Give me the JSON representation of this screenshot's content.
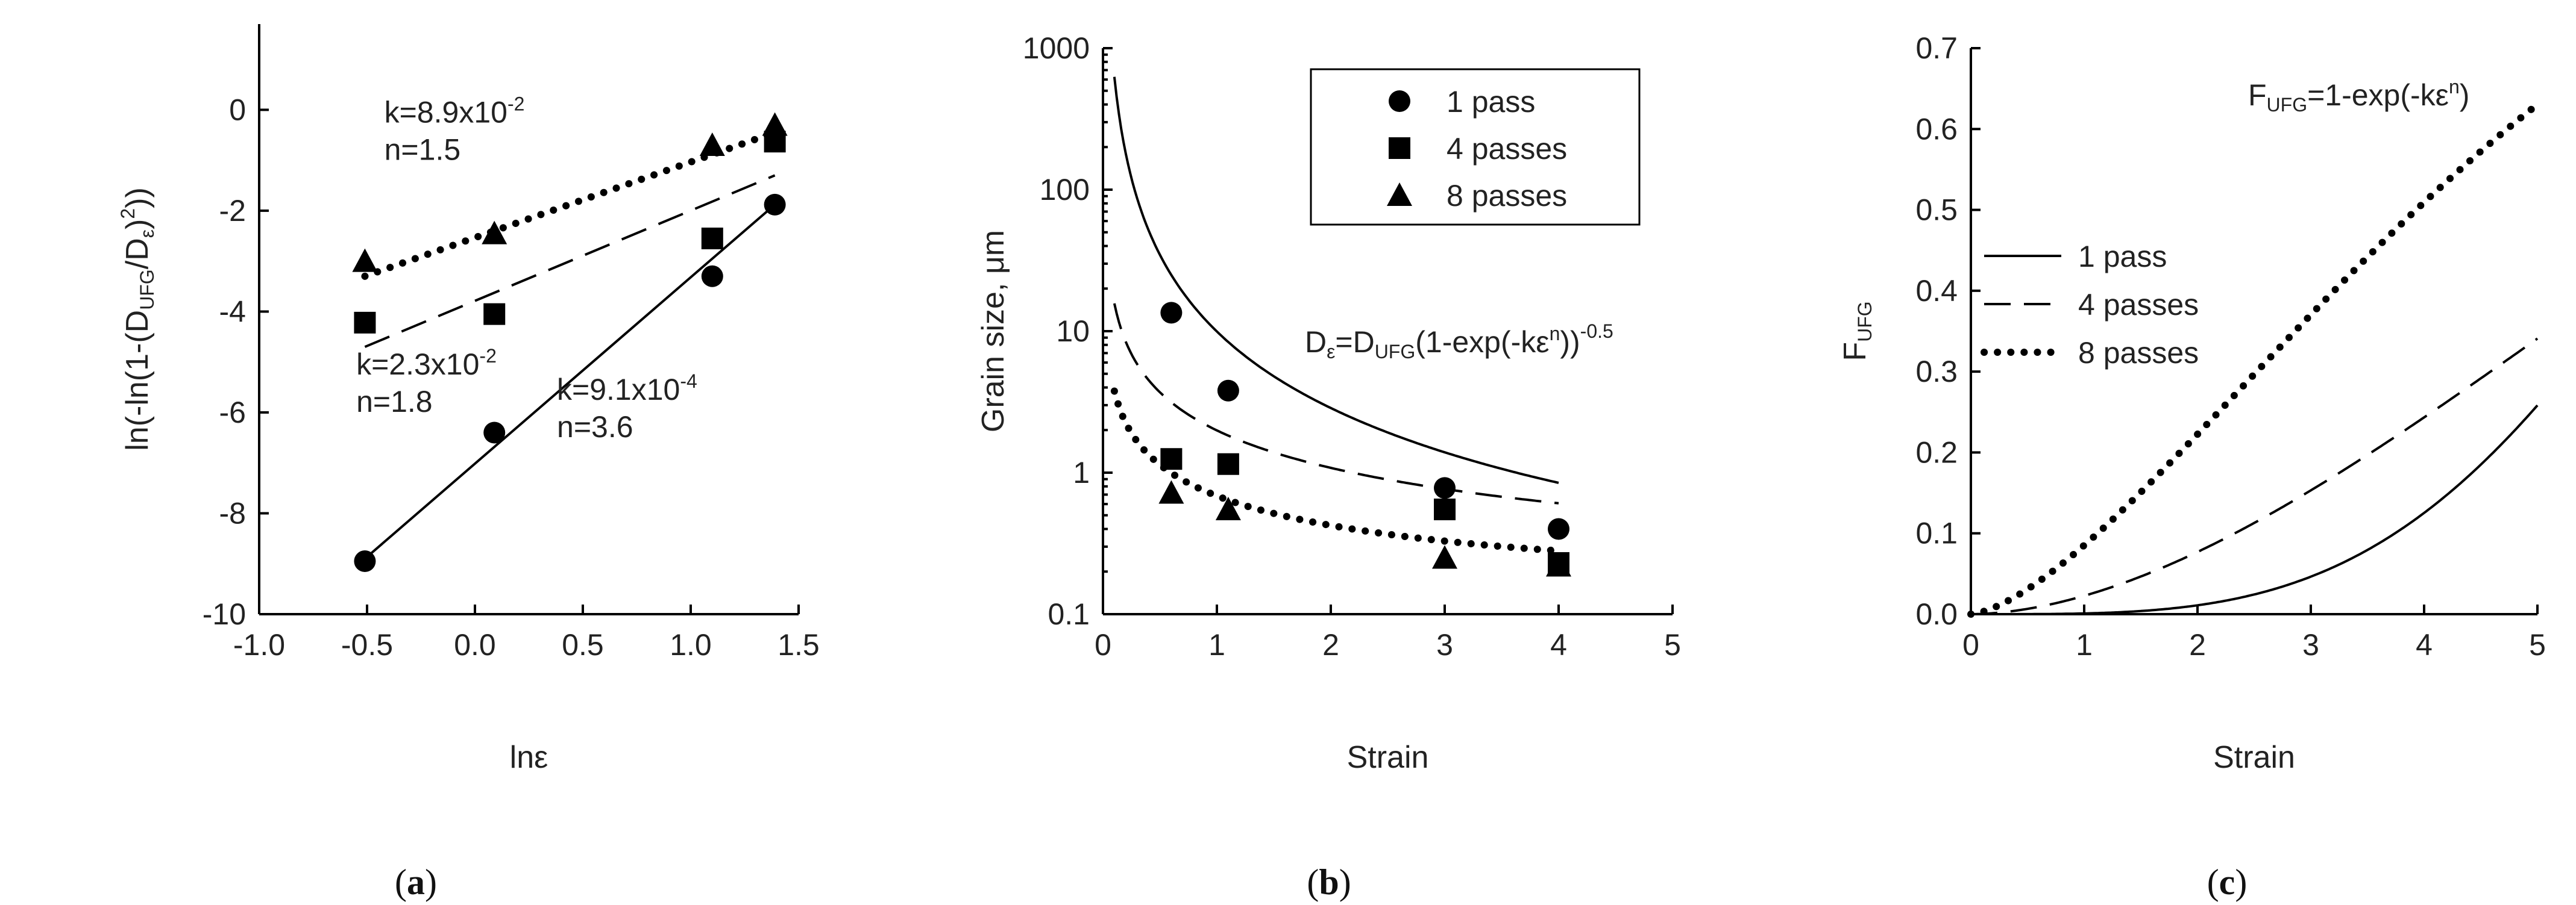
{
  "panels": [
    {
      "id": "a",
      "label_open": "(",
      "label_letter": "a",
      "label_close": ")"
    },
    {
      "id": "b",
      "label_open": "(",
      "label_letter": "b",
      "label_close": ")"
    },
    {
      "id": "c",
      "label_open": "(",
      "label_letter": "c",
      "label_close": ")"
    }
  ],
  "chart_data": [
    {
      "type": "scatter",
      "panel": "a",
      "xlabel": "lnε",
      "ylabel_parts": [
        "ln(-ln(1-(D",
        "UFG",
        "/D",
        "ε",
        ")",
        "2",
        "))"
      ],
      "xlim": [
        -1.0,
        1.5
      ],
      "ylim": [
        -10,
        1.7
      ],
      "xticks": [
        -1.0,
        -0.5,
        0.0,
        0.5,
        1.0,
        1.5
      ],
      "xtick_labels": [
        "-1.0",
        "-0.5",
        "0.0",
        "0.5",
        "1.0",
        "1.5"
      ],
      "yticks": [
        -10,
        -8,
        -6,
        -4,
        -2,
        0
      ],
      "ytick_labels": [
        "-10",
        "-8",
        "-6",
        "-4",
        "-2",
        "0"
      ],
      "series": [
        {
          "marker": "circle",
          "fit": "solid",
          "x": [
            -0.51,
            0.09,
            1.1,
            1.39
          ],
          "y": [
            -8.95,
            -6.4,
            -3.3,
            -1.88
          ],
          "fit_line": [
            [
              -0.51,
              -8.9
            ],
            [
              1.39,
              -1.88
            ]
          ]
        },
        {
          "marker": "square",
          "fit": "dash",
          "x": [
            -0.51,
            0.09,
            1.1,
            1.39
          ],
          "y": [
            -4.22,
            -4.05,
            -2.55,
            -0.63
          ],
          "fit_line": [
            [
              -0.51,
              -4.7
            ],
            [
              1.39,
              -1.3
            ]
          ]
        },
        {
          "marker": "triangle",
          "fit": "dot",
          "x": [
            -0.51,
            0.09,
            1.1,
            1.39
          ],
          "y": [
            -3.0,
            -2.45,
            -0.7,
            -0.3
          ],
          "fit_line": [
            [
              -0.51,
              -3.3
            ],
            [
              1.39,
              -0.45
            ]
          ]
        }
      ],
      "annotations": [
        {
          "lines": [
            {
              "base": "k=8.9x10",
              "sup": "-2"
            },
            {
              "base": "n=1.5",
              "sup": ""
            }
          ],
          "x": -0.42,
          "y": -0.25
        },
        {
          "lines": [
            {
              "base": "k=2.3x10",
              "sup": "-2"
            },
            {
              "base": "n=1.8",
              "sup": ""
            }
          ],
          "x": -0.55,
          "y": -5.25
        },
        {
          "lines": [
            {
              "base": "k=9.1x10",
              "sup": "-4"
            },
            {
              "base": "n=3.6",
              "sup": ""
            }
          ],
          "x": 0.38,
          "y": -5.75
        }
      ]
    },
    {
      "type": "scatter",
      "panel": "b",
      "xlabel": "Strain",
      "ylabel": "Grain size, μm",
      "yscale": "log",
      "xlim": [
        0,
        5
      ],
      "ylim": [
        0.1,
        1000
      ],
      "xticks": [
        0,
        1,
        2,
        3,
        4,
        5
      ],
      "xtick_labels": [
        "0",
        "1",
        "2",
        "3",
        "4",
        "5"
      ],
      "yticks": [
        0.1,
        1,
        10,
        100,
        1000
      ],
      "ytick_labels": [
        "0.1",
        "1",
        "10",
        "100",
        "1000"
      ],
      "legend": {
        "position": "top-right",
        "entries": [
          {
            "marker": "circle",
            "label": "1 pass"
          },
          {
            "marker": "square",
            "label": "4 passes"
          },
          {
            "marker": "triangle",
            "label": "8 passes"
          }
        ]
      },
      "series": [
        {
          "marker": "circle",
          "fit": "solid",
          "x": [
            0.6,
            1.1,
            3.0,
            4.0
          ],
          "y": [
            13.5,
            3.8,
            0.78,
            0.4
          ],
          "D_UFG": 0.3,
          "k": 0.00091,
          "n": 3.6
        },
        {
          "marker": "square",
          "fit": "dash",
          "x": [
            0.6,
            1.1,
            3.0,
            4.0
          ],
          "y": [
            1.25,
            1.15,
            0.55,
            0.23
          ],
          "D_UFG": 0.3,
          "k": 0.023,
          "n": 1.8
        },
        {
          "marker": "triangle",
          "fit": "dot",
          "x": [
            0.6,
            1.1,
            3.0,
            4.0
          ],
          "y": [
            0.72,
            0.55,
            0.25,
            0.22
          ],
          "D_UFG": 0.2,
          "k": 0.089,
          "n": 1.5
        }
      ],
      "equation_parts": [
        "D",
        "ε",
        "=D",
        "UFG",
        "(1-exp(-kε",
        "n",
        "))",
        "-0.5"
      ]
    },
    {
      "type": "line",
      "panel": "c",
      "xlabel": "Strain",
      "ylabel_parts": [
        "F",
        "UFG"
      ],
      "xlim": [
        0,
        5
      ],
      "ylim": [
        0,
        0.7
      ],
      "xticks": [
        0,
        1,
        2,
        3,
        4,
        5
      ],
      "xtick_labels": [
        "0",
        "1",
        "2",
        "3",
        "4",
        "5"
      ],
      "yticks": [
        0,
        0.1,
        0.2,
        0.3,
        0.4,
        0.5,
        0.6,
        0.7
      ],
      "ytick_labels": [
        "0.0",
        "0.1",
        "0.2",
        "0.3",
        "0.4",
        "0.5",
        "0.6",
        "0.7"
      ],
      "legend": {
        "position": "center-left",
        "entries": [
          {
            "fit": "solid",
            "label": "1 pass"
          },
          {
            "fit": "dash",
            "label": "4 passes"
          },
          {
            "fit": "dot",
            "label": "8 passes"
          }
        ]
      },
      "series": [
        {
          "fit": "solid",
          "k": 0.00091,
          "n": 3.6
        },
        {
          "fit": "dash",
          "k": 0.023,
          "n": 1.8
        },
        {
          "fit": "dot",
          "k": 0.089,
          "n": 1.5
        }
      ],
      "equation_parts": [
        "F",
        "UFG",
        "=1-exp(-kε",
        "n",
        ")"
      ]
    }
  ]
}
